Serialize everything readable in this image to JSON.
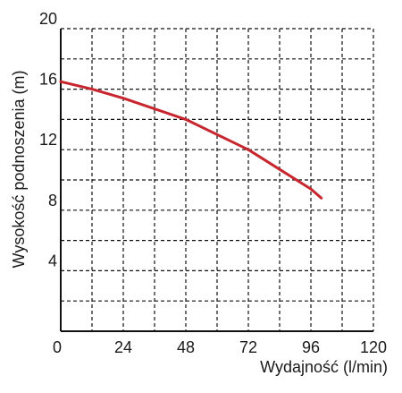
{
  "chart_data": {
    "type": "line",
    "title": "",
    "xlabel": "Wydajność (l/min)",
    "ylabel": "Wysokość podnoszenia (m)",
    "xlim": [
      0,
      120
    ],
    "ylim": [
      0,
      20
    ],
    "x_ticks": [
      0,
      24,
      48,
      72,
      96,
      120
    ],
    "y_ticks": [
      4,
      8,
      12,
      16,
      20
    ],
    "x_grid": [
      0,
      12,
      24,
      36,
      48,
      60,
      72,
      84,
      96,
      108,
      120
    ],
    "y_grid": [
      0,
      2,
      4,
      6,
      8,
      10,
      12,
      14,
      16,
      18,
      20
    ],
    "grid": true,
    "legend": "none",
    "series": [
      {
        "color": "#c8262f",
        "x": [
          0,
          12,
          24,
          36,
          48,
          60,
          72,
          84,
          96,
          100
        ],
        "y": [
          16.5,
          16.0,
          15.4,
          14.7,
          14.0,
          13.0,
          12.0,
          10.7,
          9.4,
          8.8
        ]
      }
    ]
  }
}
